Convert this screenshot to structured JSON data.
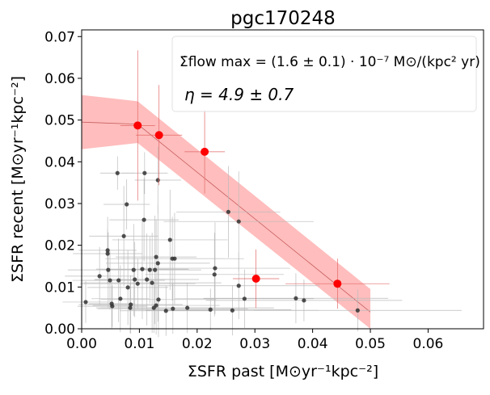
{
  "chart_data": {
    "type": "scatter",
    "title": "pgc170248",
    "x_label": "ΣSFR past  [M⊙yr⁻¹kpc⁻²]",
    "y_label": "ΣSFR recent  [M⊙yr⁻¹kpc⁻²]",
    "annotations": [
      "Σ̇flow max = (1.6 ± 0.1) · 10⁻⁷ M⊙/(kpc² yr)",
      "η = 4.9 ± 0.7"
    ],
    "xlim": [
      0,
      0.0696
    ],
    "ylim": [
      0,
      0.0716
    ],
    "xticks": [
      {
        "value": 0,
        "label": "0.00"
      },
      {
        "value": 0.01,
        "label": "0.01"
      },
      {
        "value": 0.02,
        "label": "0.02"
      },
      {
        "value": 0.03,
        "label": "0.03"
      },
      {
        "value": 0.04,
        "label": "0.04"
      },
      {
        "value": 0.05,
        "label": "0.05"
      },
      {
        "value": 0.06,
        "label": "0.06"
      }
    ],
    "yticks": [
      {
        "value": 0,
        "label": "0.00"
      },
      {
        "value": 0.01,
        "label": "0.01"
      },
      {
        "value": 0.02,
        "label": "0.02"
      },
      {
        "value": 0.03,
        "label": "0.03"
      },
      {
        "value": 0.04,
        "label": "0.04"
      },
      {
        "value": 0.05,
        "label": "0.05"
      },
      {
        "value": 0.06,
        "label": "0.06"
      },
      {
        "value": 0.07,
        "label": "0.07"
      }
    ],
    "fit": {
      "color": "#ff9999",
      "x": [
        0,
        0.0097,
        0.05
      ],
      "values": [
        0.0495,
        0.049,
        0.004
      ],
      "lower": [
        0.043,
        0.0445,
        0.0
      ],
      "upper": [
        0.056,
        0.0545,
        0.0095
      ]
    },
    "series": [
      {
        "color": "#333333",
        "errcolor": "#bbbbbb",
        "x": [
          0.0007,
          0.0031,
          0.0045,
          0.0045,
          0.0046,
          0.0049,
          0.0052,
          0.0053,
          0.0062,
          0.0064,
          0.0067,
          0.0073,
          0.0078,
          0.008,
          0.0084,
          0.0085,
          0.009,
          0.0092,
          0.0097,
          0.0105,
          0.0108,
          0.0109,
          0.0113,
          0.0118,
          0.0122,
          0.0125,
          0.0127,
          0.0129,
          0.0132,
          0.0132,
          0.0129,
          0.0133,
          0.0146,
          0.0153,
          0.0157,
          0.0161,
          0.0158,
          0.0183,
          0.0223,
          0.023,
          0.0231,
          0.0254,
          0.0261,
          0.0272,
          0.0272,
          0.0282,
          0.0371,
          0.0385,
          0.0478
        ],
        "values": [
          0.0064,
          0.0126,
          0.0188,
          0.018,
          0.0141,
          0.0116,
          0.006,
          0.0054,
          0.0373,
          0.0116,
          0.0072,
          0.0222,
          0.0298,
          0.0099,
          0.005,
          0.0058,
          0.0141,
          0.0118,
          0.0108,
          0.0143,
          0.0261,
          0.0373,
          0.0118,
          0.0141,
          0.011,
          0.005,
          0.0141,
          0.0172,
          0.0356,
          0.0157,
          0.0056,
          0.007,
          0.0043,
          0.0213,
          0.0168,
          0.0168,
          0.0048,
          0.005,
          0.0046,
          0.013,
          0.0145,
          0.028,
          0.0044,
          0.0257,
          0.0103,
          0.0072,
          0.0073,
          0.0068,
          0.0044
        ],
        "xerr": [
          0.004,
          0.006,
          0.005,
          0.006,
          0.007,
          0.005,
          0.004,
          0.006,
          0.003,
          0.008,
          0.005,
          0.006,
          0.004,
          0.007,
          0.005,
          0.009,
          0.006,
          0.007,
          0.01,
          0.008,
          0.006,
          0.004,
          0.009,
          0.007,
          0.012,
          0.01,
          0.008,
          0.007,
          0.004,
          0.009,
          0.011,
          0.01,
          0.008,
          0.01,
          0.009,
          0.012,
          0.013,
          0.015,
          0.014,
          0.012,
          0.013,
          0.009,
          0.015,
          0.013,
          0.014,
          0.012,
          0.016,
          0.017,
          0.018
        ],
        "yerr": [
          0.005,
          0.007,
          0.008,
          0.006,
          0.009,
          0.007,
          0.006,
          0.005,
          0.004,
          0.01,
          0.008,
          0.012,
          0.006,
          0.009,
          0.006,
          0.007,
          0.011,
          0.009,
          0.006,
          0.012,
          0.01,
          0.005,
          0.011,
          0.008,
          0.012,
          0.006,
          0.013,
          0.009,
          0.008,
          0.014,
          0.007,
          0.009,
          0.006,
          0.012,
          0.01,
          0.011,
          0.006,
          0.006,
          0.005,
          0.01,
          0.011,
          0.011,
          0.006,
          0.012,
          0.008,
          0.007,
          0.006,
          0.005,
          0.005
        ]
      },
      {
        "color": "#ff0000",
        "errcolor": "#e36868",
        "x": [
          0.0097,
          0.0134,
          0.0213,
          0.0302,
          0.0443
        ],
        "values": [
          0.0487,
          0.0464,
          0.0424,
          0.012,
          0.0108
        ],
        "xerr": [
          0.003,
          0.004,
          0.0035,
          0.004,
          0.009
        ],
        "yerr": [
          0.018,
          0.012,
          0.01,
          0.007,
          0.006
        ]
      }
    ]
  }
}
